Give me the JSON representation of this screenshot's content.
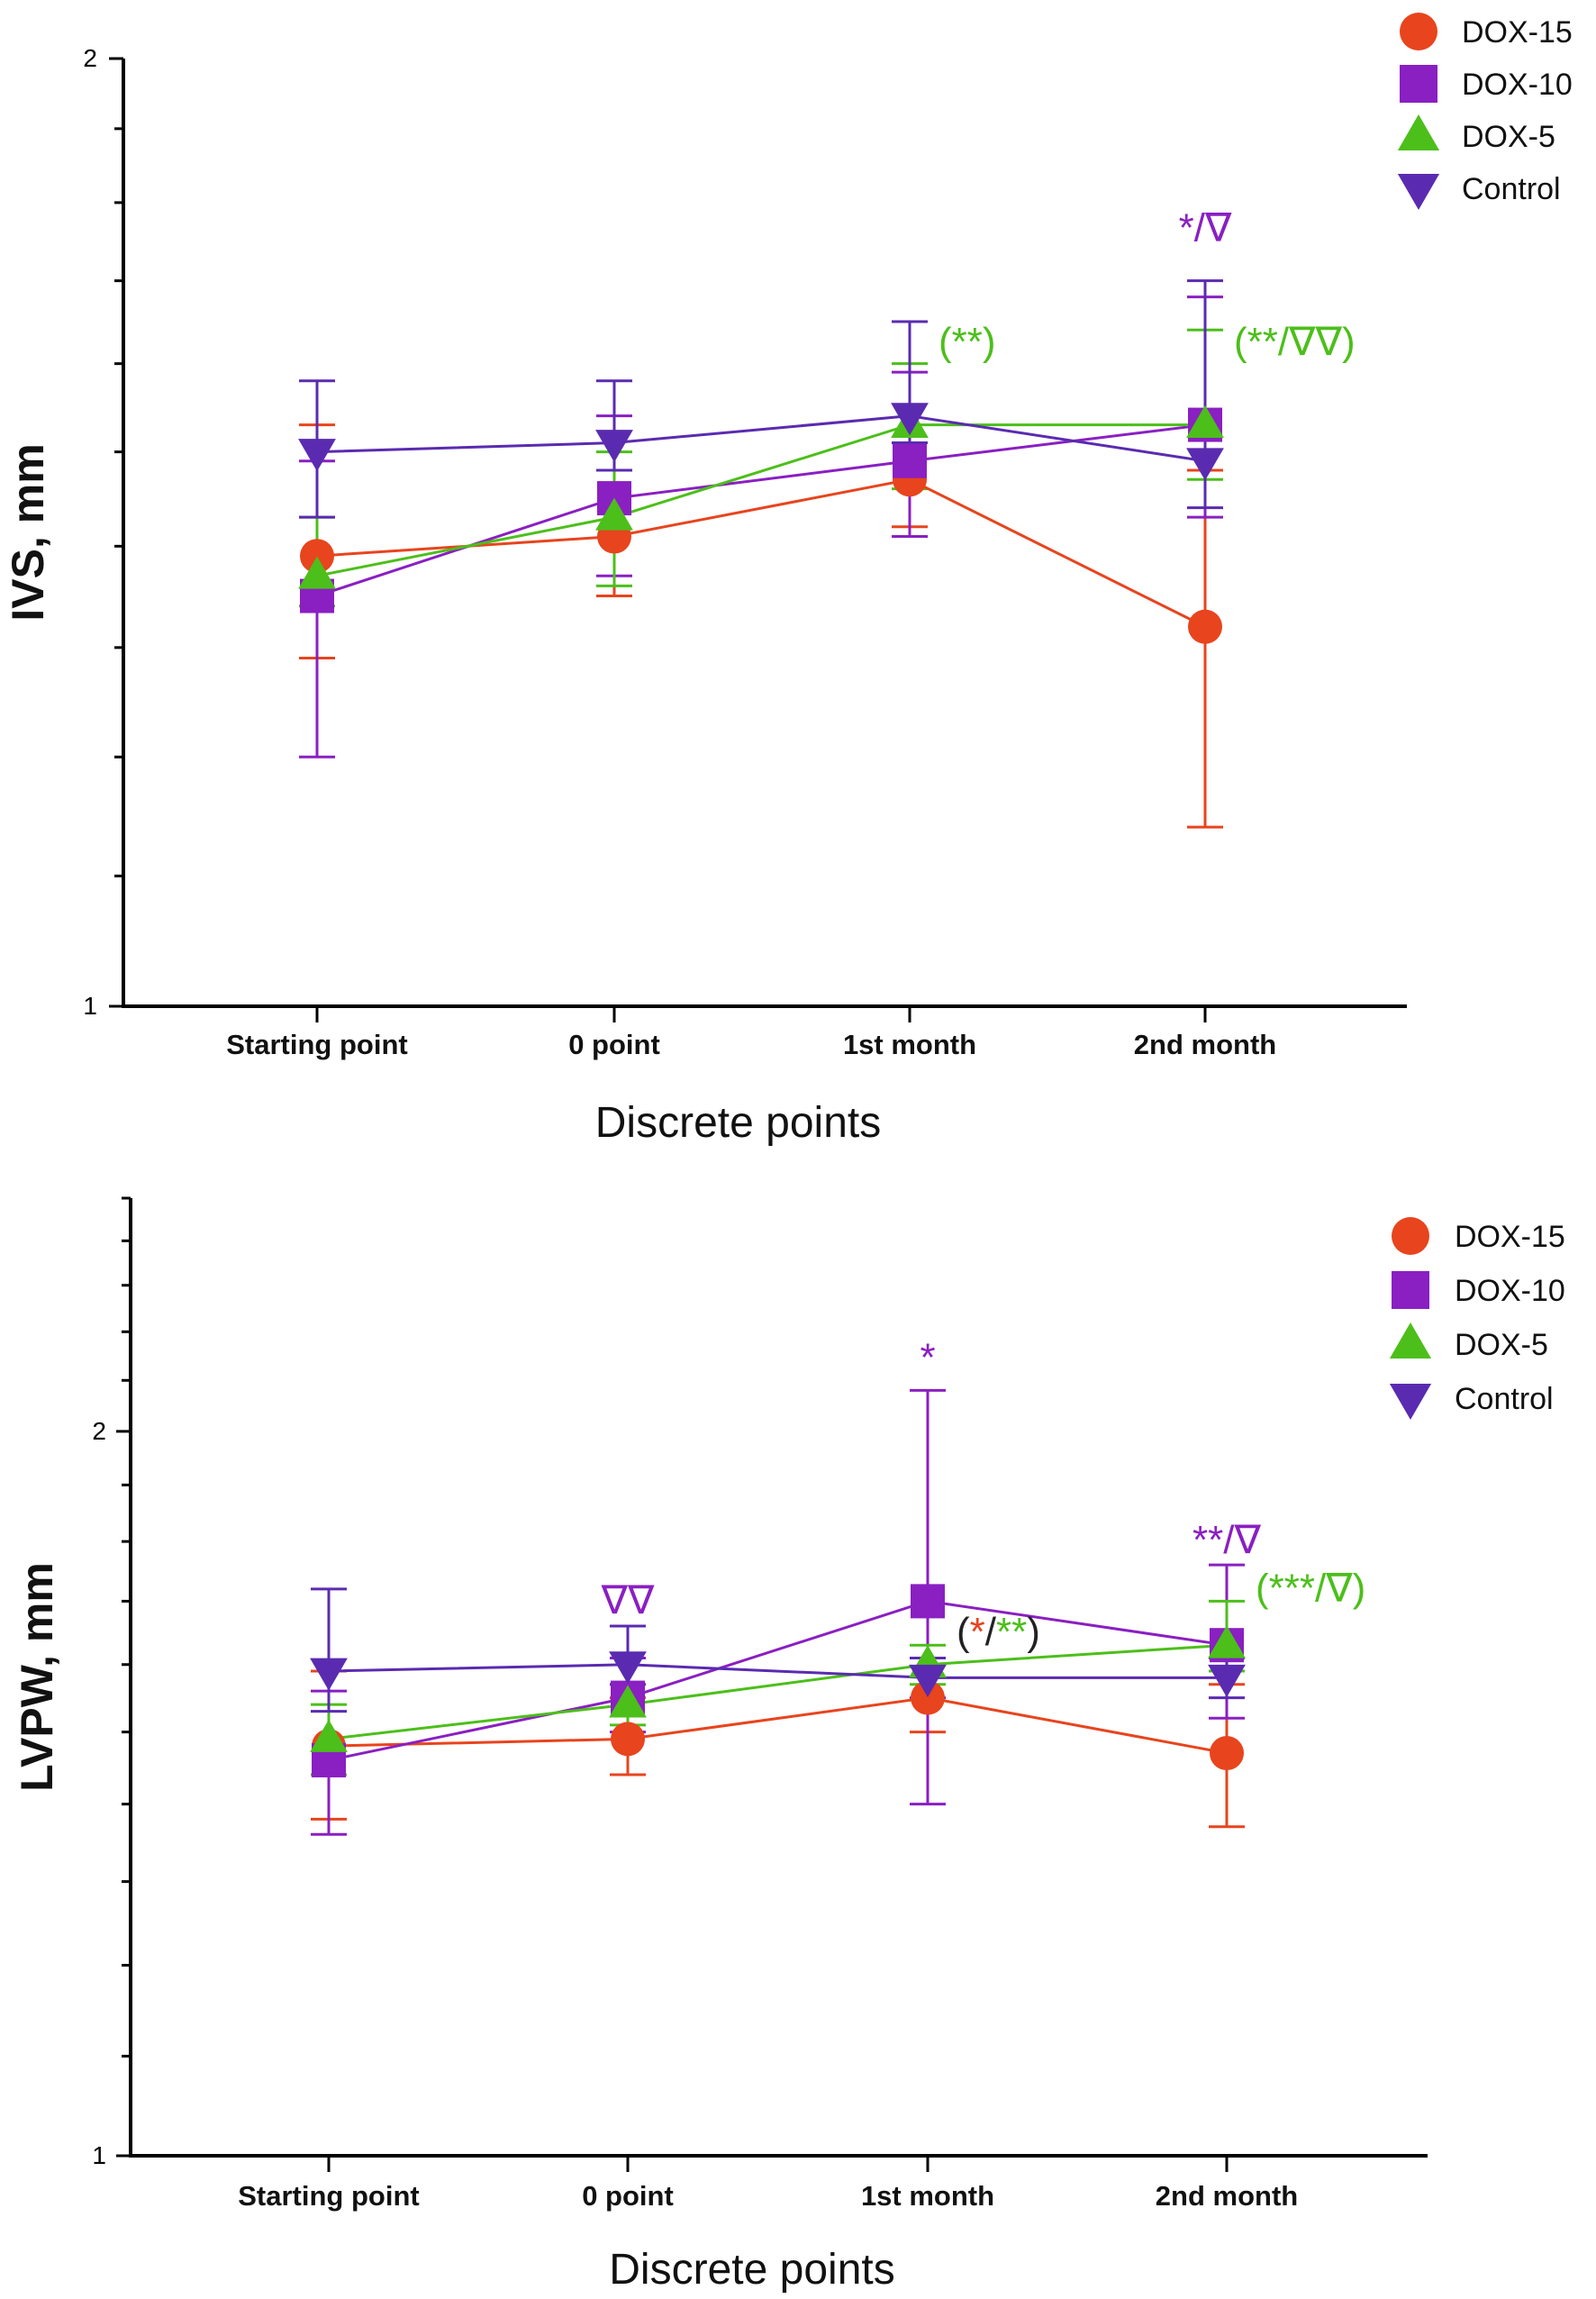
{
  "colors": {
    "DOX-15": "#e8441d",
    "DOX-10": "#8a1fc2",
    "DOX-5": "#4cbf1a",
    "Control": "#5a2bb0",
    "axis": "#000000",
    "black": "#222222"
  },
  "chart_data": [
    {
      "type": "line",
      "title": "",
      "xlabel": "Discrete points",
      "ylabel": "IVS, mm",
      "categories": [
        "Starting point",
        "0 point",
        "1st month",
        "2nd month"
      ],
      "y_scale": "log",
      "ylim": [
        1,
        2
      ],
      "y_ticks": [
        "1",
        "2"
      ],
      "legend_position": "top-right",
      "series": [
        {
          "name": "DOX-15",
          "marker": "circle",
          "values": [
            1.39,
            1.41,
            1.47,
            1.32
          ],
          "err_low": [
            1.29,
            1.35,
            1.42,
            1.14
          ],
          "err_high": [
            1.53,
            1.48,
            1.51,
            1.48
          ]
        },
        {
          "name": "DOX-10",
          "marker": "square",
          "values": [
            1.35,
            1.45,
            1.49,
            1.53
          ],
          "err_low": [
            1.2,
            1.37,
            1.41,
            1.43
          ],
          "err_high": [
            1.49,
            1.54,
            1.59,
            1.68
          ]
        },
        {
          "name": "DOX-5",
          "marker": "triangle-up",
          "values": [
            1.37,
            1.43,
            1.53,
            1.53
          ],
          "err_low": [
            1.34,
            1.36,
            1.46,
            1.47
          ],
          "err_high": [
            1.43,
            1.5,
            1.6,
            1.64
          ]
        },
        {
          "name": "Control",
          "marker": "triangle-down",
          "values": [
            1.5,
            1.51,
            1.54,
            1.49
          ],
          "err_low": [
            1.43,
            1.48,
            1.51,
            1.44
          ],
          "err_high": [
            1.58,
            1.58,
            1.65,
            1.7
          ]
        }
      ],
      "annotations": [
        {
          "category": "1st month",
          "y": 1.61,
          "parts": [
            {
              "text": "(**)",
              "series": "DOX-5"
            }
          ]
        },
        {
          "category": "2nd month",
          "y": 1.61,
          "parts": [
            {
              "text": "(**/∇∇)",
              "series": "DOX-5"
            }
          ]
        },
        {
          "category": "2nd month",
          "y": 1.75,
          "parts": [
            {
              "text": "*/∇",
              "series": "DOX-10"
            }
          ]
        }
      ]
    },
    {
      "type": "line",
      "title": "",
      "xlabel": "Discrete points",
      "ylabel": "LVPW, mm",
      "categories": [
        "Starting point",
        "0 point",
        "1st month",
        "2nd month"
      ],
      "y_scale": "log",
      "ylim": [
        1,
        2.5
      ],
      "y_ticks": [
        "1",
        "2"
      ],
      "legend_position": "top-right",
      "series": [
        {
          "name": "DOX-15",
          "marker": "circle",
          "values": [
            1.48,
            1.49,
            1.55,
            1.47
          ],
          "err_low": [
            1.38,
            1.44,
            1.5,
            1.37
          ],
          "err_high": [
            1.59,
            1.55,
            1.61,
            1.57
          ]
        },
        {
          "name": "DOX-10",
          "marker": "square",
          "values": [
            1.46,
            1.55,
            1.7,
            1.63
          ],
          "err_low": [
            1.36,
            1.5,
            1.4,
            1.52
          ],
          "err_high": [
            1.56,
            1.61,
            2.08,
            1.76
          ]
        },
        {
          "name": "DOX-5",
          "marker": "triangle-up",
          "values": [
            1.49,
            1.54,
            1.6,
            1.63
          ],
          "err_low": [
            1.44,
            1.51,
            1.57,
            1.59
          ],
          "err_high": [
            1.54,
            1.57,
            1.63,
            1.7
          ]
        },
        {
          "name": "Control",
          "marker": "triangle-down",
          "values": [
            1.59,
            1.6,
            1.58,
            1.58
          ],
          "err_low": [
            1.53,
            1.57,
            1.55,
            1.55
          ],
          "err_high": [
            1.72,
            1.66,
            1.61,
            1.61
          ]
        }
      ],
      "annotations": [
        {
          "category": "0 point",
          "y": 1.68,
          "parts": [
            {
              "text": "∇∇",
              "series": "DOX-10"
            }
          ]
        },
        {
          "category": "1st month",
          "y": 2.12,
          "parts": [
            {
              "text": "*",
              "series": "DOX-10"
            }
          ]
        },
        {
          "category": "1st month",
          "y": 1.63,
          "parts": [
            {
              "text": "(",
              "series": "black"
            },
            {
              "text": "*",
              "series": "DOX-15"
            },
            {
              "text": "/",
              "series": "black"
            },
            {
              "text": "**",
              "series": "DOX-5"
            },
            {
              "text": ")",
              "series": "black"
            }
          ]
        },
        {
          "category": "2nd month",
          "y": 1.78,
          "parts": [
            {
              "text": "**/∇",
              "series": "DOX-10"
            }
          ]
        },
        {
          "category": "2nd month",
          "y": 1.7,
          "parts": [
            {
              "text": "(***/∇)",
              "series": "DOX-5"
            }
          ]
        }
      ]
    }
  ]
}
